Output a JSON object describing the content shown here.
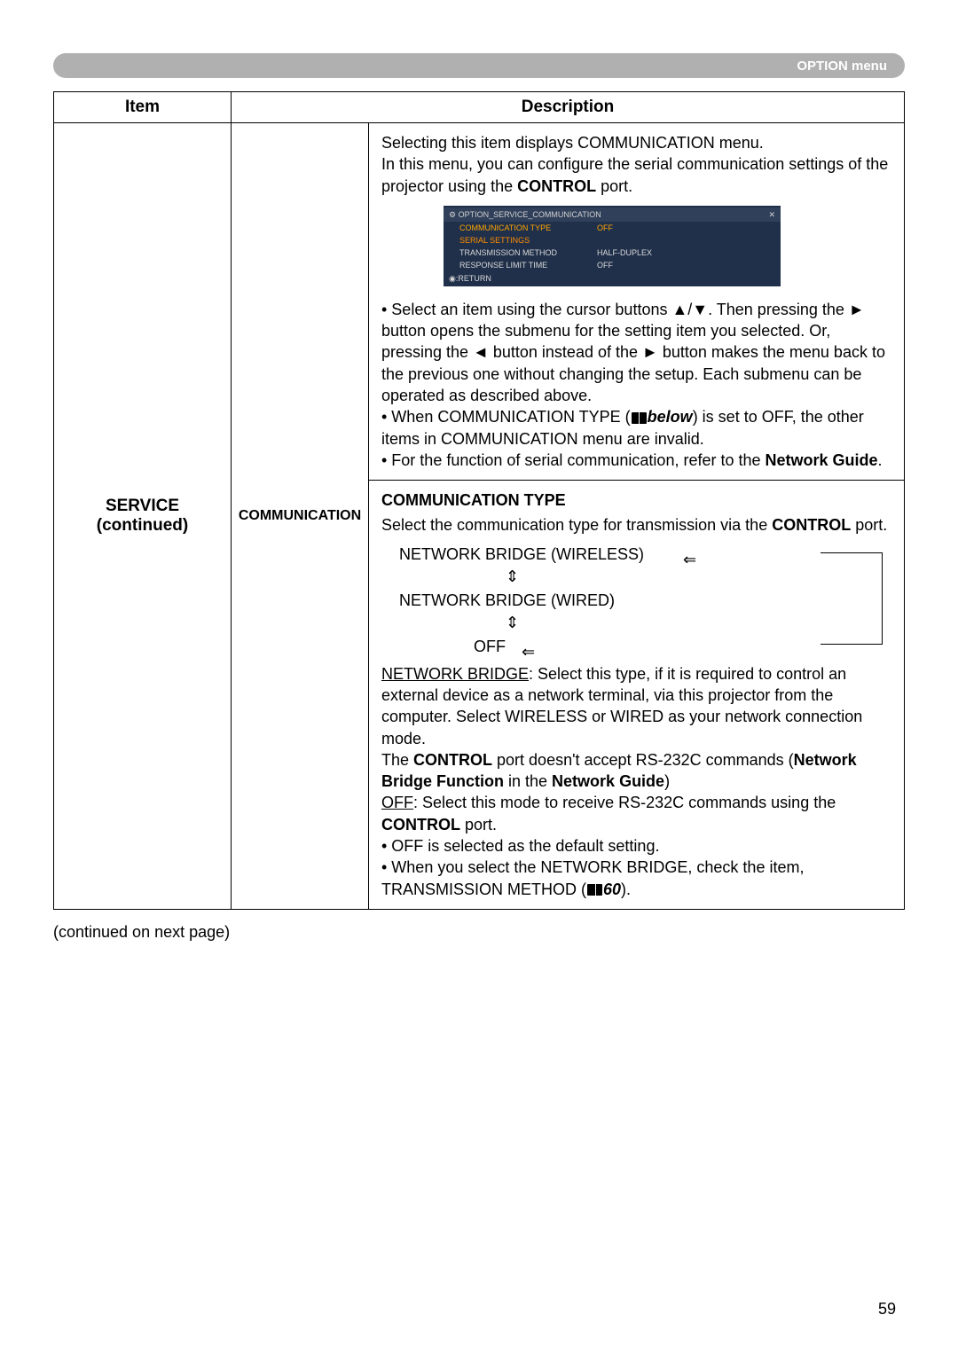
{
  "header": {
    "title": "OPTION menu"
  },
  "table": {
    "headers": {
      "item": "Item",
      "description": "Description"
    },
    "item_cell": {
      "line1": "SERVICE",
      "line2": "(continued)"
    },
    "sub_cell": "COMMUNICATION",
    "desc_top": {
      "p1a": "Selecting this item displays COMMUNICATION menu.",
      "p1b": "In this menu, you can configure the serial communication settings of the projector using the ",
      "p1c": "CONTROL",
      "p1d": " port."
    },
    "screenshot": {
      "title_left": "⚙ OPTION_SERVICE_COMMUNICATION",
      "title_right": "✕",
      "rows": [
        {
          "label": "COMMUNICATION TYPE",
          "value": "OFF",
          "highlight": true
        },
        {
          "label": "SERIAL SETTINGS",
          "value": "",
          "serial": true
        },
        {
          "label": "TRANSMISSION METHOD",
          "value": "HALF-DUPLEX"
        },
        {
          "label": "RESPONSE LIMIT TIME",
          "value": "OFF"
        }
      ],
      "return": "◉:RETURN"
    },
    "desc_mid": {
      "b1a": "• Select an item using the cursor buttons ▲/▼. Then pressing the ► button opens the submenu for the setting item you selected. Or, pressing the ◄ button instead of the ► button makes the menu back to the previous one without changing the setup. Each submenu can be operated as described above.",
      "b2a": "• When COMMUNICATION TYPE (",
      "b2b": "below",
      "b2c": ") is set to OFF, the other items in COMMUNICATION menu are invalid.",
      "b3a": "• For the function of serial communication, refer to the ",
      "b3b": "Network Guide",
      "b3c": "."
    },
    "desc_bottom": {
      "heading": "COMMUNICATION TYPE",
      "intro_a": "Select the communication type for transmission via the ",
      "intro_b": "CONTROL",
      "intro_c": " port.",
      "sel1": "NETWORK BRIDGE (WIRELESS)",
      "sel2": "NETWORK BRIDGE (WIRED)",
      "sel3": "OFF",
      "updown": "⇕",
      "arrow_left": "⇐",
      "nb_a": "NETWORK BRIDGE",
      "nb_b": ": Select this type, if it is required to control an external device as a network terminal, via this projector from the computer. Select WIRELESS or WIRED as your network connection mode.",
      "nb_c": "The ",
      "nb_d": "CONTROL",
      "nb_e": " port doesn't accept RS-232C commands (",
      "nb_f": "Network Bridge Function",
      "nb_g": " in the ",
      "nb_h": "Network Guide",
      "nb_i": ")",
      "off_a": "OFF",
      "off_b": ": Select this mode to receive RS-232C commands using the ",
      "off_c": "CONTROL",
      "off_d": " port.",
      "bul1": "• OFF is selected as the default setting.",
      "bul2a": "• When you select the NETWORK BRIDGE, check the item, TRANSMISSION METHOD (",
      "bul2b": "60",
      "bul2c": ")."
    }
  },
  "footer": "(continued on next page)",
  "page_number": "59"
}
